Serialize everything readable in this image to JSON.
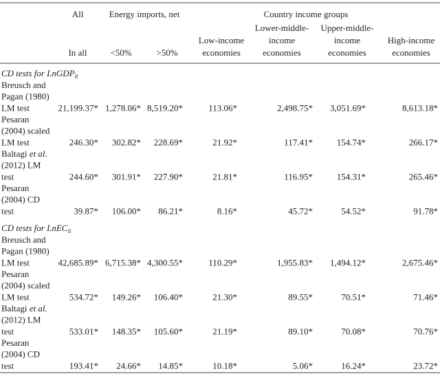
{
  "header": {
    "all": "All",
    "energy": "Energy imports, net",
    "income": "Country income groups",
    "subheaders": [
      [
        "In all"
      ],
      [
        "<50%"
      ],
      [
        ">50%"
      ],
      [
        "Low-income",
        "economies"
      ],
      [
        "Lower-middle-",
        "income",
        "economies"
      ],
      [
        "Upper-middle-",
        "income",
        "economies"
      ],
      [
        "High-income",
        "economies"
      ]
    ]
  },
  "sections": [
    {
      "title": {
        "text": "CD tests for LnGDP",
        "subscript": "it"
      },
      "rows": [
        {
          "label": [
            "Breusch and",
            "Pagan (1980)",
            "LM test"
          ],
          "values": [
            "21,199.37*",
            "1,278.06*",
            "8,519.20*",
            "113.06*",
            "2,498.75*",
            "3,051.69*",
            "8,613.18*"
          ]
        },
        {
          "label": [
            "Pesaran",
            "(2004) scaled",
            "LM test"
          ],
          "values": [
            "246.30*",
            "302.82*",
            "228.69*",
            "21.92*",
            "117.41*",
            "154.74*",
            "266.17*"
          ]
        },
        {
          "label": [
            [
              {
                "text": "Baltagi "
              },
              {
                "text": "et al.",
                "italic": true
              }
            ],
            "(2012) LM",
            "test"
          ],
          "values": [
            "244.60*",
            "301.91*",
            "227.90*",
            "21.81*",
            "116.95*",
            "154.31*",
            "265.46*"
          ]
        },
        {
          "label": [
            "Pesaran",
            "(2004) CD",
            "test"
          ],
          "values": [
            "39.87*",
            "106.00*",
            "86.21*",
            "8.16*",
            "45.72*",
            "54.52*",
            "91.78*"
          ]
        }
      ]
    },
    {
      "title": {
        "text": "CD tests for LnEC",
        "subscript": "it"
      },
      "rows": [
        {
          "label": [
            "Breusch and",
            "Pagan (1980)",
            "LM test"
          ],
          "values": [
            "42,685.89*",
            "6,715.38*",
            "4,300.55*",
            "110.29*",
            "1,955.83*",
            "1,494.12*",
            "2,675.46*"
          ]
        },
        {
          "label": [
            "Pesaran",
            "(2004) scaled",
            "LM test"
          ],
          "values": [
            "534.72*",
            "149.26*",
            "106.40*",
            "21.30*",
            "89.55*",
            "70.51*",
            "71.46*"
          ]
        },
        {
          "label": [
            [
              {
                "text": "Baltagi "
              },
              {
                "text": "et al.",
                "italic": true
              }
            ],
            "(2012) LM",
            "test"
          ],
          "values": [
            "533.01*",
            "148.35*",
            "105.60*",
            "21.19*",
            "89.10*",
            "70.08*",
            "70.76*"
          ]
        },
        {
          "label": [
            "Pesaran",
            "(2004) CD",
            "test"
          ],
          "values": [
            "193.41*",
            "24.66*",
            "14.85*",
            "10.18*",
            "5.06*",
            "16.24*",
            "23.72*"
          ]
        }
      ]
    }
  ]
}
